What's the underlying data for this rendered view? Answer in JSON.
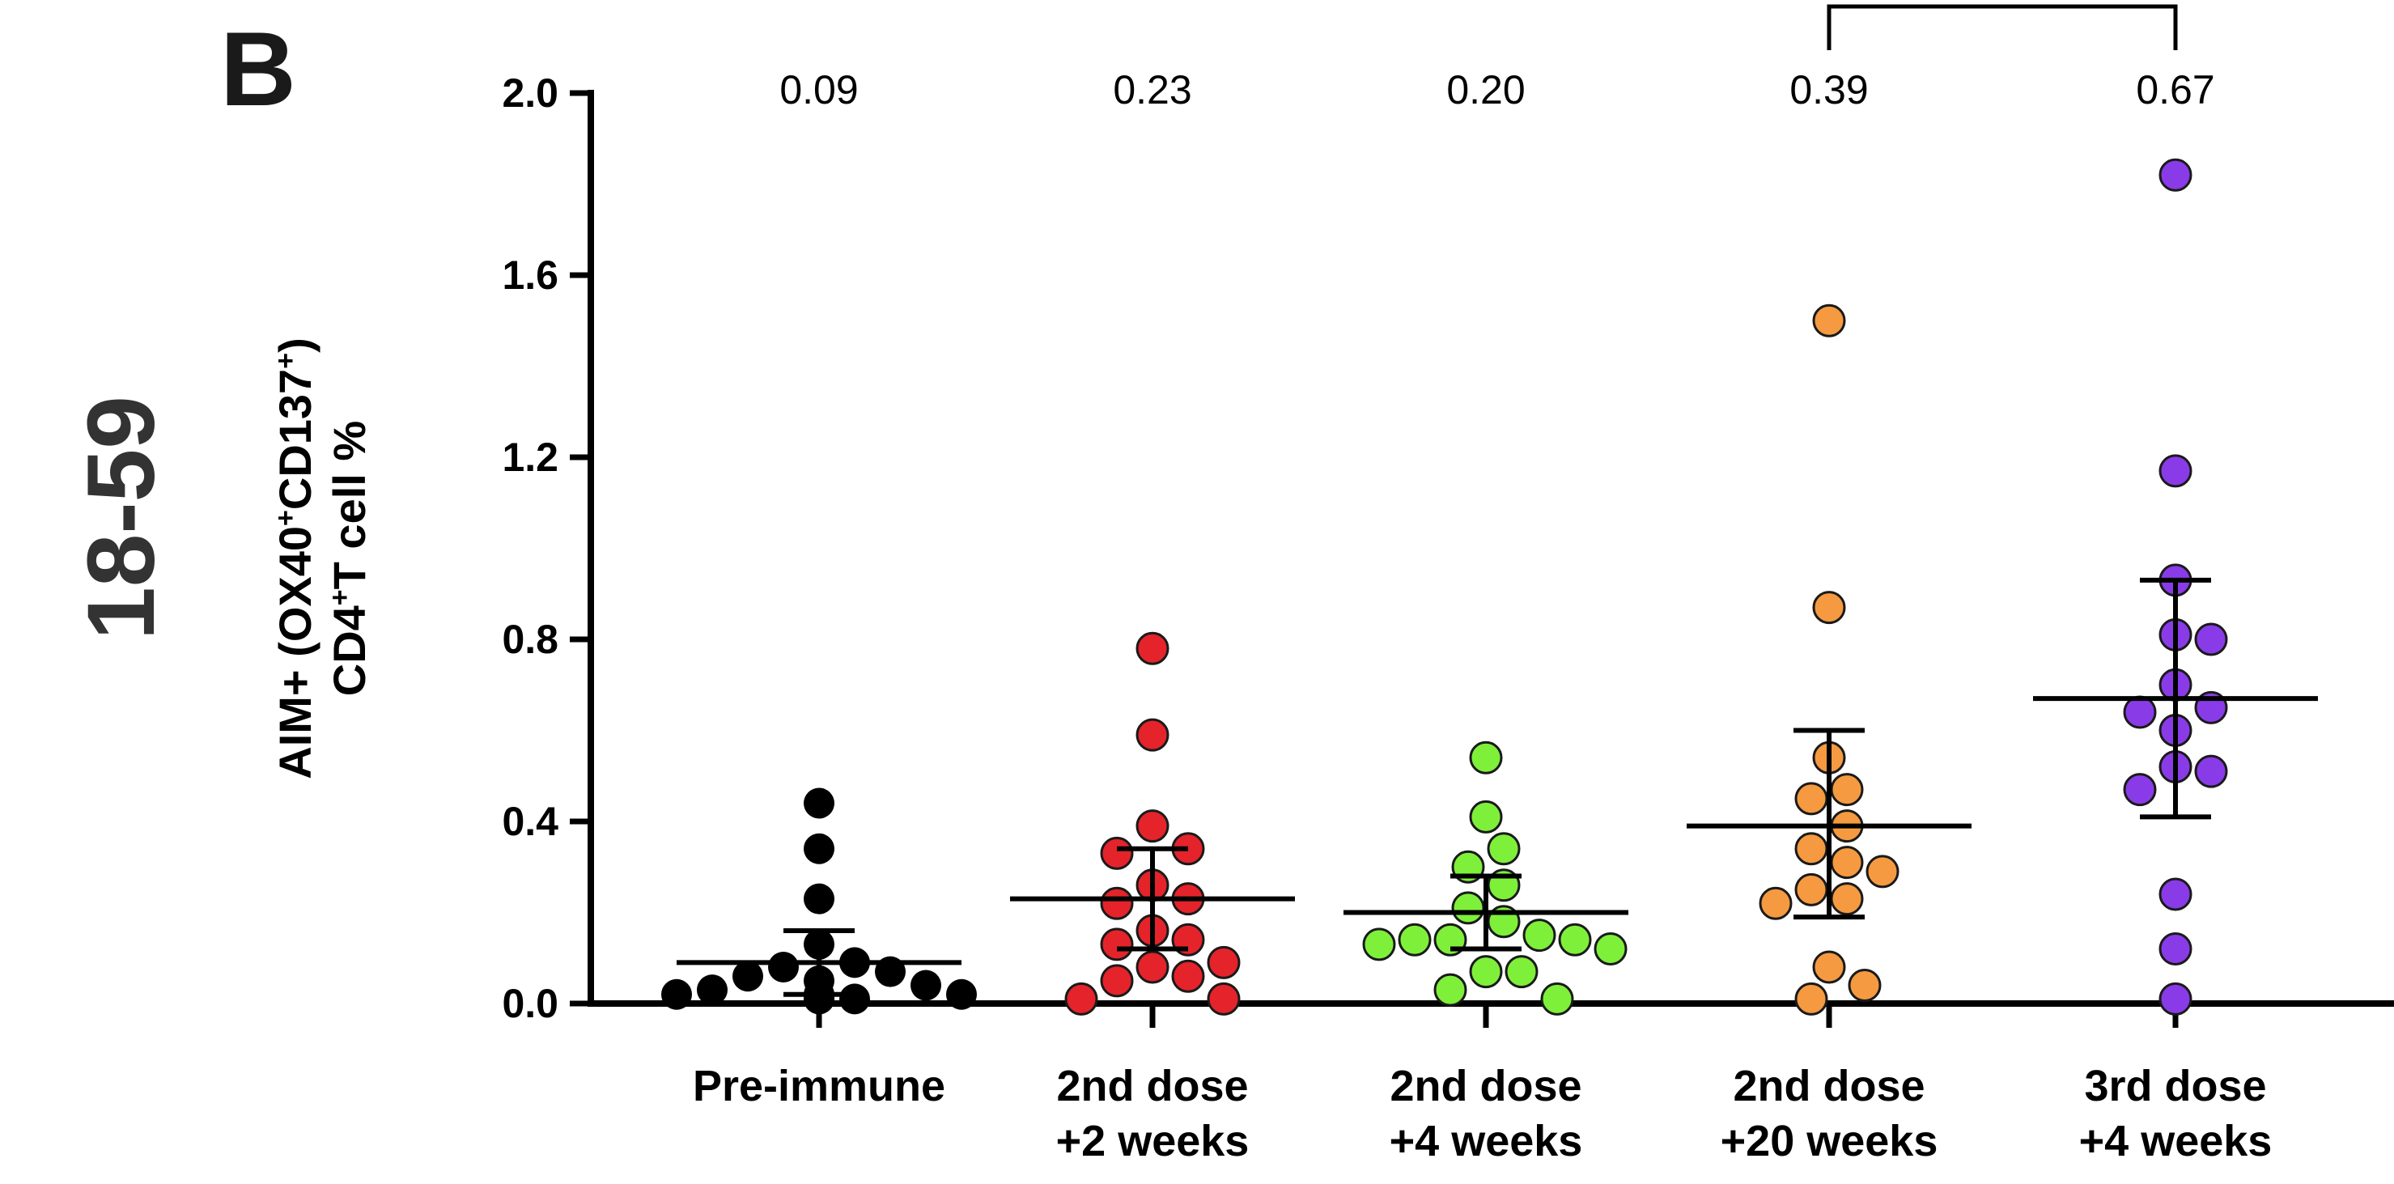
{
  "panel_letter": "B",
  "age_group": "18-59",
  "chart_data": {
    "type": "scatter",
    "ylabel_parts": {
      "line1_pre": "AIM+ (OX40",
      "line1_sup1": "+",
      "line1_mid": "CD137",
      "line1_sup2": "+",
      "line1_post": ")",
      "line2_pre": "CD4",
      "line2_sup": "+",
      "line2_post": "T cell  %"
    },
    "ylim": [
      0,
      2.0
    ],
    "yticks": [
      "0.0",
      "0.4",
      "0.8",
      "1.2",
      "1.6",
      "2.0"
    ],
    "ytick_values": [
      0,
      0.4,
      0.8,
      1.2,
      1.6,
      2.0
    ],
    "comparison_bracket": [
      "2nd dose +20 weeks",
      "3rd dose +4 weeks"
    ],
    "groups": [
      {
        "label_line1": "Pre-immune",
        "label_line2": "",
        "color": "#000000",
        "mean": 0.09,
        "sd_low": 0.02,
        "sd_high": 0.16,
        "mean_label": "0.09",
        "points": [
          0.44,
          0.34,
          0.23,
          0.13,
          0.09,
          0.08,
          0.07,
          0.06,
          0.05,
          0.04,
          0.03,
          0.02,
          0.02,
          0.02,
          0.01,
          0.01,
          0.01
        ]
      },
      {
        "label_line1": "2nd dose",
        "label_line2": "+2 weeks",
        "color": "#e5232b",
        "mean": 0.23,
        "sd_low": 0.12,
        "sd_high": 0.34,
        "mean_label": "0.23",
        "points": [
          0.78,
          0.59,
          0.39,
          0.34,
          0.33,
          0.26,
          0.23,
          0.22,
          0.16,
          0.14,
          0.13,
          0.09,
          0.08,
          0.06,
          0.05,
          0.01,
          0.01
        ]
      },
      {
        "label_line1": "2nd dose",
        "label_line2": "+4 weeks",
        "color": "#7ef03a",
        "mean": 0.2,
        "sd_low": 0.12,
        "sd_high": 0.28,
        "mean_label": "0.20",
        "points": [
          0.54,
          0.41,
          0.34,
          0.3,
          0.26,
          0.21,
          0.18,
          0.15,
          0.14,
          0.14,
          0.14,
          0.13,
          0.12,
          0.07,
          0.07,
          0.03,
          0.01
        ]
      },
      {
        "label_line1": "2nd dose",
        "label_line2": "+20 weeks",
        "color": "#f59a40",
        "mean": 0.39,
        "sd_low": 0.19,
        "sd_high": 0.6,
        "mean_label": "0.39",
        "points": [
          1.5,
          0.87,
          0.54,
          0.47,
          0.45,
          0.39,
          0.34,
          0.31,
          0.29,
          0.25,
          0.23,
          0.22,
          0.08,
          0.04,
          0.01
        ]
      },
      {
        "label_line1": "3rd dose",
        "label_line2": "+4 weeks",
        "color": "#8a3be8",
        "mean": 0.67,
        "sd_low": 0.41,
        "sd_high": 0.93,
        "mean_label": "0.67",
        "points": [
          1.82,
          1.17,
          0.93,
          0.81,
          0.8,
          0.7,
          0.65,
          0.64,
          0.6,
          0.52,
          0.51,
          0.47,
          0.24,
          0.12,
          0.01
        ]
      }
    ]
  }
}
